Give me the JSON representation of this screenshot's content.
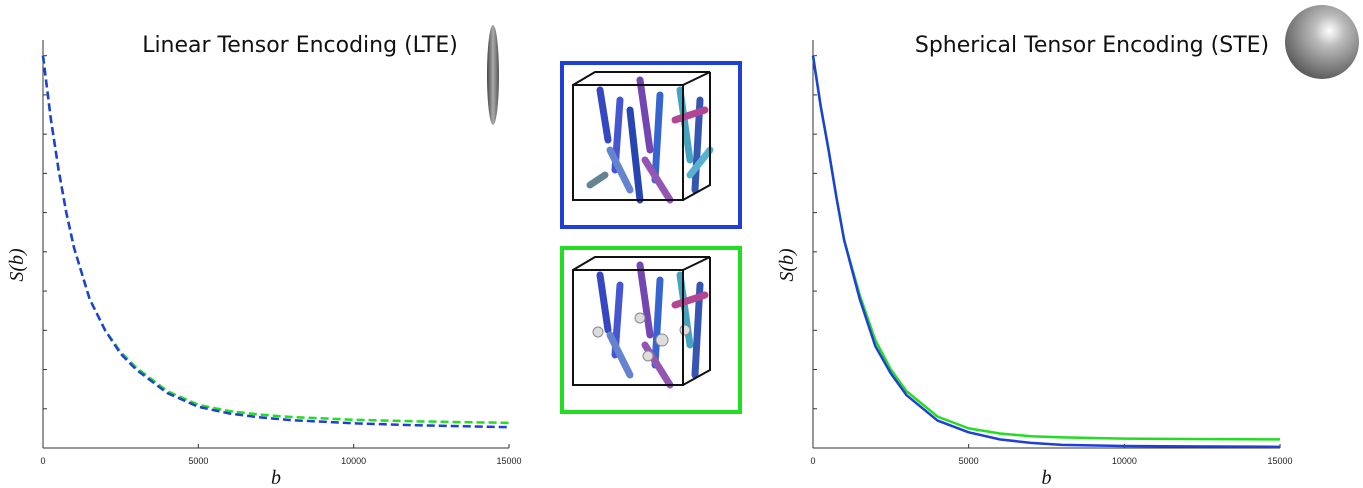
{
  "chart_data": [
    {
      "type": "line",
      "title": "Linear Tensor Encoding (LTE)",
      "x_label": "b",
      "y_label": "S(b)",
      "x": [
        0,
        250,
        500,
        750,
        1000,
        1500,
        2000,
        2500,
        3000,
        4000,
        5000,
        6000,
        7000,
        8000,
        10000,
        12000,
        15000
      ],
      "series": [
        {
          "color": "#22dd22",
          "dash": true,
          "values": [
            1.0,
            0.84,
            0.71,
            0.6,
            0.51,
            0.38,
            0.3,
            0.245,
            0.205,
            0.145,
            0.11,
            0.094,
            0.085,
            0.079,
            0.072,
            0.068,
            0.064
          ]
        },
        {
          "color": "#1f3fd6",
          "dash": true,
          "values": [
            1.0,
            0.84,
            0.71,
            0.6,
            0.51,
            0.38,
            0.3,
            0.24,
            0.2,
            0.14,
            0.105,
            0.088,
            0.078,
            0.071,
            0.063,
            0.058,
            0.053
          ]
        }
      ],
      "xlim": [
        0,
        15000
      ],
      "xticks": [
        0,
        5000,
        10000,
        15000
      ],
      "ylim": [
        0,
        1.04
      ],
      "yticks": [
        0.1,
        0.2,
        0.3,
        0.4,
        0.5,
        0.6,
        0.7,
        0.8,
        0.9,
        1.0
      ],
      "ytick_labels": false
    },
    {
      "type": "line",
      "title": "Spherical Tensor Encoding (STE)",
      "x_label": "b",
      "y_label": "S(b)",
      "x": [
        0,
        250,
        500,
        750,
        1000,
        1500,
        2000,
        2500,
        3000,
        4000,
        5000,
        6000,
        7000,
        8000,
        10000,
        12000,
        15000
      ],
      "series": [
        {
          "color": "#22dd22",
          "dash": false,
          "values": [
            1.0,
            0.87,
            0.76,
            0.64,
            0.53,
            0.39,
            0.275,
            0.2,
            0.145,
            0.08,
            0.05,
            0.037,
            0.03,
            0.027,
            0.024,
            0.023,
            0.022
          ]
        },
        {
          "color": "#1f3fd6",
          "dash": false,
          "values": [
            1.0,
            0.87,
            0.76,
            0.64,
            0.53,
            0.38,
            0.26,
            0.19,
            0.135,
            0.07,
            0.04,
            0.022,
            0.013,
            0.008,
            0.005,
            0.004,
            0.003
          ]
        }
      ],
      "xlim": [
        0,
        15000
      ],
      "xticks": [
        0,
        5000,
        10000,
        15000
      ],
      "ylim": [
        0,
        1.04
      ],
      "yticks": [
        0.1,
        0.2,
        0.3,
        0.4,
        0.5,
        0.6,
        0.7,
        0.8,
        0.9,
        1.0
      ],
      "ytick_labels": false
    }
  ]
}
